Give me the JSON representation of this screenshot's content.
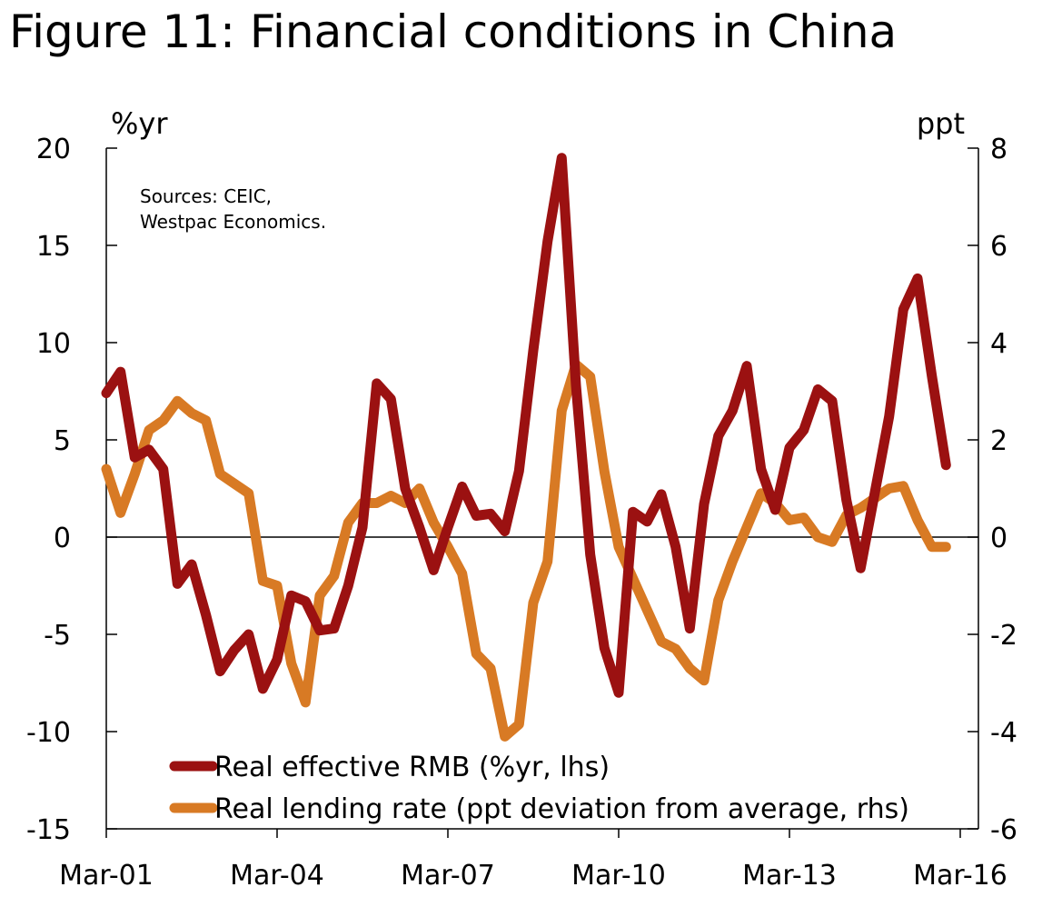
{
  "title": "Figure 11: Financial conditions in China",
  "chart_data": {
    "type": "line",
    "title": "Figure 11: Financial conditions in China",
    "left_axis": {
      "unit": "%yr",
      "ylim": [
        -15,
        20
      ],
      "ticks": [
        "20",
        "15",
        "10",
        "5",
        "0",
        "-5",
        "-10",
        "-15"
      ]
    },
    "right_axis": {
      "unit": "ppt",
      "ylim": [
        -6,
        8
      ],
      "ticks": [
        "8",
        "6",
        "4",
        "2",
        "0",
        "-2",
        "-4",
        "-6"
      ]
    },
    "x_tick_labels": [
      "Mar-01",
      "Mar-04",
      "Mar-07",
      "Mar-10",
      "Mar-13",
      "Mar-16"
    ],
    "x_range_quarters": [
      0,
      60
    ],
    "source_note": [
      "Sources: CEIC,",
      "Westpac Economics."
    ],
    "colors": {
      "series1": "#9b1111",
      "series2": "#d87a24"
    },
    "series": [
      {
        "name": "Real effective RMB (%yr, lhs)",
        "axis": "left",
        "x": [
          0,
          1,
          2,
          3,
          4,
          5,
          6,
          7,
          8,
          9,
          10,
          11,
          12,
          13,
          14,
          15,
          16,
          17,
          18,
          19,
          20,
          21,
          22,
          23,
          24,
          25,
          26,
          27,
          28,
          29,
          30,
          31,
          32,
          33,
          34,
          35,
          36,
          37,
          38,
          39,
          40,
          41,
          42,
          43,
          44,
          45,
          46,
          47,
          48,
          49,
          50,
          51,
          52,
          53,
          54,
          55,
          56,
          57,
          58,
          59
        ],
        "values": [
          7.4,
          8.5,
          4.1,
          4.5,
          3.5,
          -2.4,
          -1.4,
          -4.0,
          -6.9,
          -5.8,
          -5.0,
          -7.8,
          -6.3,
          -3.0,
          -3.3,
          -4.8,
          -4.7,
          -2.5,
          0.5,
          7.9,
          7.1,
          2.5,
          0.5,
          -1.7,
          0.5,
          2.6,
          1.1,
          1.2,
          0.3,
          3.4,
          9.6,
          15.2,
          19.5,
          7.8,
          -0.9,
          -5.7,
          -8.0,
          1.3,
          0.8,
          2.2,
          -0.5,
          -4.7,
          1.7,
          5.2,
          6.5,
          8.8,
          3.5,
          1.4,
          4.6,
          5.5,
          7.6,
          7.0,
          1.9,
          -1.6,
          2.3,
          6.2,
          11.7,
          13.3,
          8.3,
          3.7
        ]
      },
      {
        "name": "Real lending rate (ppt deviation from average, rhs)",
        "axis": "right",
        "x": [
          0,
          1,
          2,
          3,
          4,
          5,
          6,
          7,
          8,
          9,
          10,
          11,
          12,
          13,
          14,
          15,
          16,
          17,
          18,
          19,
          20,
          21,
          22,
          23,
          24,
          25,
          26,
          27,
          28,
          29,
          30,
          31,
          32,
          33,
          34,
          35,
          36,
          37,
          38,
          39,
          40,
          41,
          42,
          43,
          44,
          45,
          46,
          47,
          48,
          49,
          50,
          51,
          52,
          53,
          54,
          55,
          56,
          57,
          58,
          59
        ],
        "values": [
          1.4,
          0.5,
          1.3,
          2.2,
          2.4,
          2.8,
          2.55,
          2.4,
          1.3,
          1.1,
          0.9,
          -0.9,
          -1.0,
          -2.6,
          -3.4,
          -1.2,
          -0.8,
          0.3,
          0.7,
          0.7,
          0.85,
          0.7,
          1.0,
          0.3,
          -0.2,
          -0.75,
          -2.4,
          -2.7,
          -4.1,
          -3.85,
          -1.35,
          -0.5,
          2.6,
          3.55,
          3.3,
          1.35,
          -0.2,
          -0.85,
          -1.5,
          -2.15,
          -2.3,
          -2.7,
          -2.95,
          -1.3,
          -0.5,
          0.2,
          0.9,
          0.7,
          0.35,
          0.4,
          0.0,
          -0.1,
          0.45,
          0.6,
          0.8,
          1.0,
          1.05,
          0.35,
          -0.2,
          -0.2
        ]
      }
    ]
  }
}
